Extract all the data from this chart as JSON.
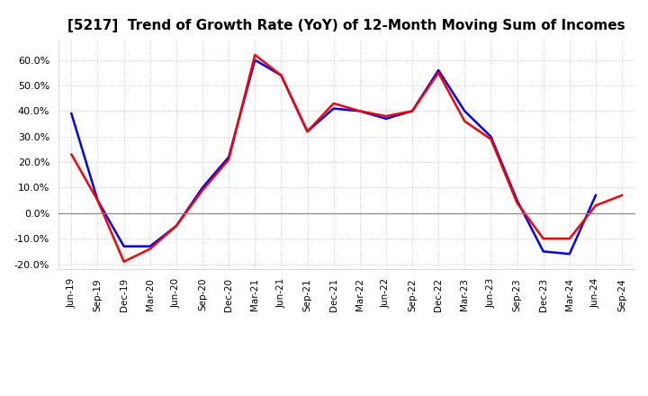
{
  "title": "[5217]  Trend of Growth Rate (YoY) of 12-Month Moving Sum of Incomes",
  "x_labels": [
    "Jun-19",
    "Sep-19",
    "Dec-19",
    "Mar-20",
    "Jun-20",
    "Sep-20",
    "Dec-20",
    "Mar-21",
    "Jun-21",
    "Sep-21",
    "Dec-21",
    "Mar-22",
    "Jun-22",
    "Sep-22",
    "Dec-22",
    "Mar-23",
    "Jun-23",
    "Sep-23",
    "Dec-23",
    "Mar-24",
    "Jun-24",
    "Sep-24"
  ],
  "ordinary_income": [
    0.39,
    0.05,
    -0.13,
    -0.13,
    -0.05,
    0.1,
    0.22,
    0.6,
    0.54,
    0.32,
    0.41,
    0.4,
    0.37,
    0.4,
    0.56,
    0.4,
    0.3,
    0.05,
    -0.15,
    -0.16,
    0.07,
    null
  ],
  "net_income": [
    0.23,
    0.05,
    -0.19,
    -0.14,
    -0.05,
    0.09,
    0.21,
    0.62,
    0.54,
    0.32,
    0.43,
    0.4,
    0.38,
    0.4,
    0.55,
    0.36,
    0.29,
    0.04,
    -0.1,
    -0.1,
    0.03,
    0.07
  ],
  "ordinary_color": "#0000ff",
  "net_color": "#ff0000",
  "ylim": [
    -0.22,
    0.68
  ],
  "yticks": [
    -0.2,
    -0.1,
    0.0,
    0.1,
    0.2,
    0.3,
    0.4,
    0.5,
    0.6
  ],
  "background_color": "#ffffff",
  "grid_color": "#bbbbbb",
  "title_fontsize": 11
}
